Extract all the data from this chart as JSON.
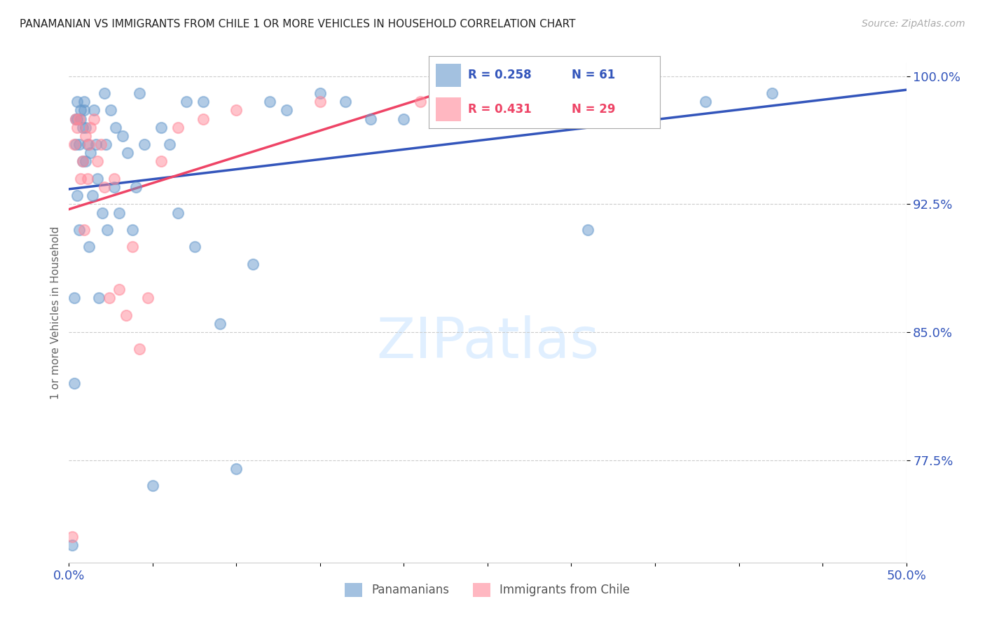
{
  "title": "PANAMANIAN VS IMMIGRANTS FROM CHILE 1 OR MORE VEHICLES IN HOUSEHOLD CORRELATION CHART",
  "source": "Source: ZipAtlas.com",
  "ylabel": "1 or more Vehicles in Household",
  "x_min": 0.0,
  "x_max": 0.5,
  "y_min": 0.715,
  "y_max": 1.008,
  "x_tick_positions": [
    0.0,
    0.05,
    0.1,
    0.15,
    0.2,
    0.25,
    0.3,
    0.35,
    0.4,
    0.45,
    0.5
  ],
  "x_tick_labels": [
    "0.0%",
    "",
    "",
    "",
    "",
    "",
    "",
    "",
    "",
    "",
    "50.0%"
  ],
  "y_ticks": [
    0.775,
    0.85,
    0.925,
    1.0
  ],
  "y_tick_labels": [
    "77.5%",
    "85.0%",
    "92.5%",
    "100.0%"
  ],
  "grid_color": "#cccccc",
  "background_color": "#ffffff",
  "blue_color": "#6699cc",
  "pink_color": "#ff8899",
  "blue_line_color": "#3355bb",
  "pink_line_color": "#ee4466",
  "blue_label": "Panamanians",
  "pink_label": "Immigrants from Chile",
  "legend_R_blue": "R = 0.258",
  "legend_N_blue": "N = 61",
  "legend_R_pink": "R = 0.431",
  "legend_N_pink": "N = 29",
  "blue_x": [
    0.002,
    0.003,
    0.003,
    0.004,
    0.004,
    0.005,
    0.005,
    0.005,
    0.006,
    0.006,
    0.007,
    0.007,
    0.008,
    0.008,
    0.009,
    0.009,
    0.01,
    0.01,
    0.011,
    0.012,
    0.013,
    0.014,
    0.015,
    0.016,
    0.017,
    0.018,
    0.02,
    0.021,
    0.022,
    0.023,
    0.025,
    0.027,
    0.028,
    0.03,
    0.032,
    0.035,
    0.038,
    0.04,
    0.042,
    0.045,
    0.05,
    0.055,
    0.06,
    0.065,
    0.07,
    0.075,
    0.08,
    0.09,
    0.1,
    0.11,
    0.12,
    0.13,
    0.15,
    0.165,
    0.18,
    0.2,
    0.22,
    0.25,
    0.31,
    0.38,
    0.42
  ],
  "blue_y": [
    0.725,
    0.87,
    0.82,
    0.96,
    0.975,
    0.93,
    0.975,
    0.985,
    0.96,
    0.91,
    0.98,
    0.975,
    0.97,
    0.95,
    0.985,
    0.98,
    0.97,
    0.95,
    0.96,
    0.9,
    0.955,
    0.93,
    0.98,
    0.96,
    0.94,
    0.87,
    0.92,
    0.99,
    0.96,
    0.91,
    0.98,
    0.935,
    0.97,
    0.92,
    0.965,
    0.955,
    0.91,
    0.935,
    0.99,
    0.96,
    0.76,
    0.97,
    0.96,
    0.92,
    0.985,
    0.9,
    0.985,
    0.855,
    0.77,
    0.89,
    0.985,
    0.98,
    0.99,
    0.985,
    0.975,
    0.975,
    0.995,
    0.99,
    0.91,
    0.985,
    0.99
  ],
  "pink_x": [
    0.002,
    0.003,
    0.004,
    0.005,
    0.006,
    0.007,
    0.008,
    0.009,
    0.01,
    0.011,
    0.012,
    0.013,
    0.015,
    0.017,
    0.019,
    0.021,
    0.024,
    0.027,
    0.03,
    0.034,
    0.038,
    0.042,
    0.047,
    0.055,
    0.065,
    0.08,
    0.1,
    0.15,
    0.21
  ],
  "pink_y": [
    0.73,
    0.96,
    0.975,
    0.97,
    0.975,
    0.94,
    0.95,
    0.91,
    0.965,
    0.94,
    0.96,
    0.97,
    0.975,
    0.95,
    0.96,
    0.935,
    0.87,
    0.94,
    0.875,
    0.86,
    0.9,
    0.84,
    0.87,
    0.95,
    0.97,
    0.975,
    0.98,
    0.985,
    0.985
  ],
  "marker_size": 120,
  "marker_alpha": 0.5,
  "line_width": 2.5
}
